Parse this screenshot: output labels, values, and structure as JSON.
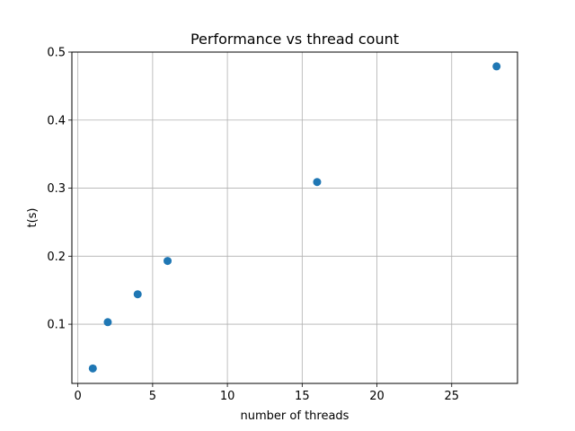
{
  "chart_data": {
    "type": "scatter",
    "title": "Performance vs thread count",
    "xlabel": "number of threads",
    "ylabel": "t(s)",
    "x": [
      1,
      2,
      4,
      6,
      16,
      28
    ],
    "y": [
      0.035,
      0.103,
      0.144,
      0.193,
      0.309,
      0.479
    ],
    "xlim": [
      -0.4,
      29.4
    ],
    "ylim": [
      0.013,
      0.5
    ],
    "xticks": [
      0,
      5,
      10,
      15,
      20,
      25
    ],
    "yticks": [
      0.1,
      0.2,
      0.3,
      0.4,
      0.5
    ],
    "xtick_labels": [
      "0",
      "5",
      "10",
      "15",
      "20",
      "25"
    ],
    "ytick_labels": [
      "0.1",
      "0.2",
      "0.3",
      "0.4",
      "0.5"
    ],
    "grid": true,
    "marker_color": "#1f77b4"
  }
}
